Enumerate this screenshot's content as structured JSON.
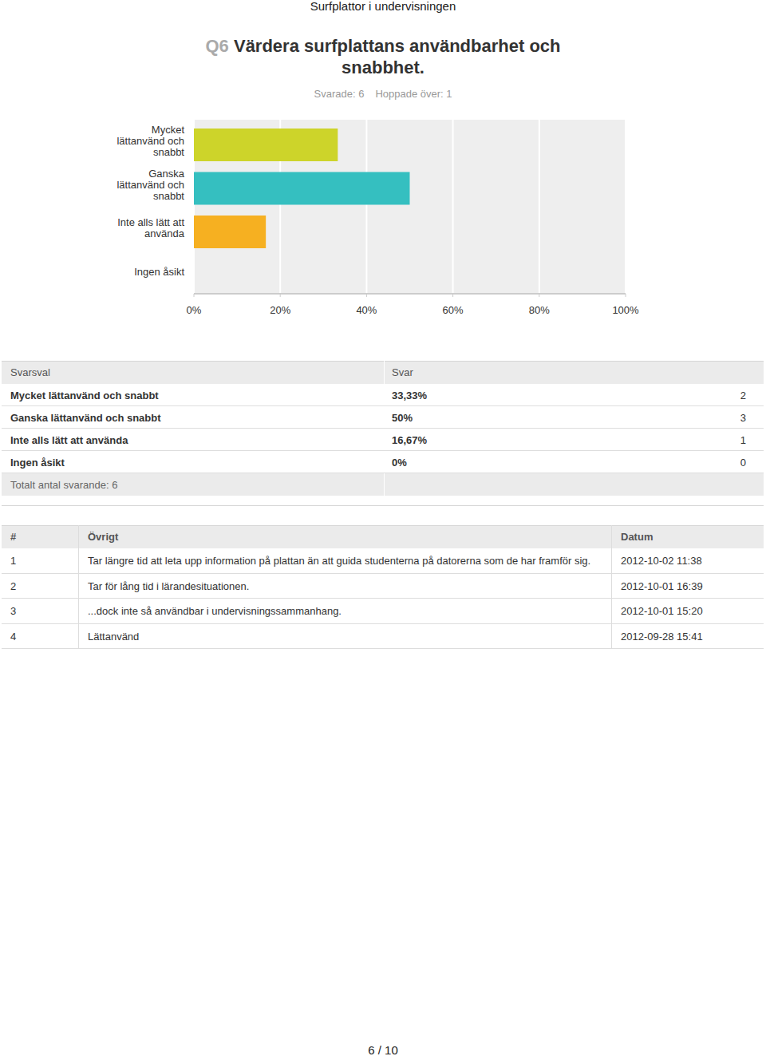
{
  "header": {
    "report_title": "Surfplattor i undervisningen",
    "question_number": "Q6",
    "question": "Värdera surfplattans användbarhet och snabbhet.",
    "answered": "Svarade: 6",
    "skipped": "Hoppade över: 1"
  },
  "chart_data": {
    "type": "bar",
    "orientation": "horizontal",
    "categories": [
      "Mycket lättanvänd och snabbt",
      "Ganska lättanvänd och snabbt",
      "Inte alls lätt att använda",
      "Ingen åsikt"
    ],
    "values": [
      33.33,
      50,
      16.67,
      0
    ],
    "colors": [
      "#cdd42a",
      "#35bfc0",
      "#f6b021",
      "#e35b4f"
    ],
    "xlim": [
      0,
      100
    ],
    "xticks": [
      {
        "value": 0,
        "label": "0%"
      },
      {
        "value": 20,
        "label": "20%"
      },
      {
        "value": 40,
        "label": "40%"
      },
      {
        "value": 60,
        "label": "60%"
      },
      {
        "value": 80,
        "label": "80%"
      },
      {
        "value": 100,
        "label": "100%"
      }
    ],
    "grid": true
  },
  "summary_table": {
    "columns": [
      "Svarsval",
      "Svar"
    ],
    "rows": [
      [
        "Mycket lättanvänd och snabbt",
        "33,33%",
        2
      ],
      [
        "Ganska lättanvänd och snabbt",
        "50%",
        3
      ],
      [
        "Inte alls lätt att använda",
        "16,67%",
        1
      ],
      [
        "Ingen åsikt",
        "0%",
        0
      ]
    ],
    "total": "Totalt antal svarande: 6"
  },
  "comments_table": {
    "columns": [
      "#",
      "Övrigt",
      "Datum"
    ],
    "rows": [
      [
        1,
        "Tar längre tid att leta upp information på plattan än att guida studenterna på datorerna som de har framför sig.",
        "2012-10-02 11:38"
      ],
      [
        2,
        "Tar för lång tid i lärandesituationen.",
        "2012-10-01 16:39"
      ],
      [
        3,
        "...dock inte så användbar i undervisningssammanhang.",
        "2012-10-01 15:20"
      ],
      [
        4,
        "Lättanvänd",
        "2012-09-28 15:41"
      ]
    ]
  },
  "footer": {
    "page": "6 / 10"
  }
}
